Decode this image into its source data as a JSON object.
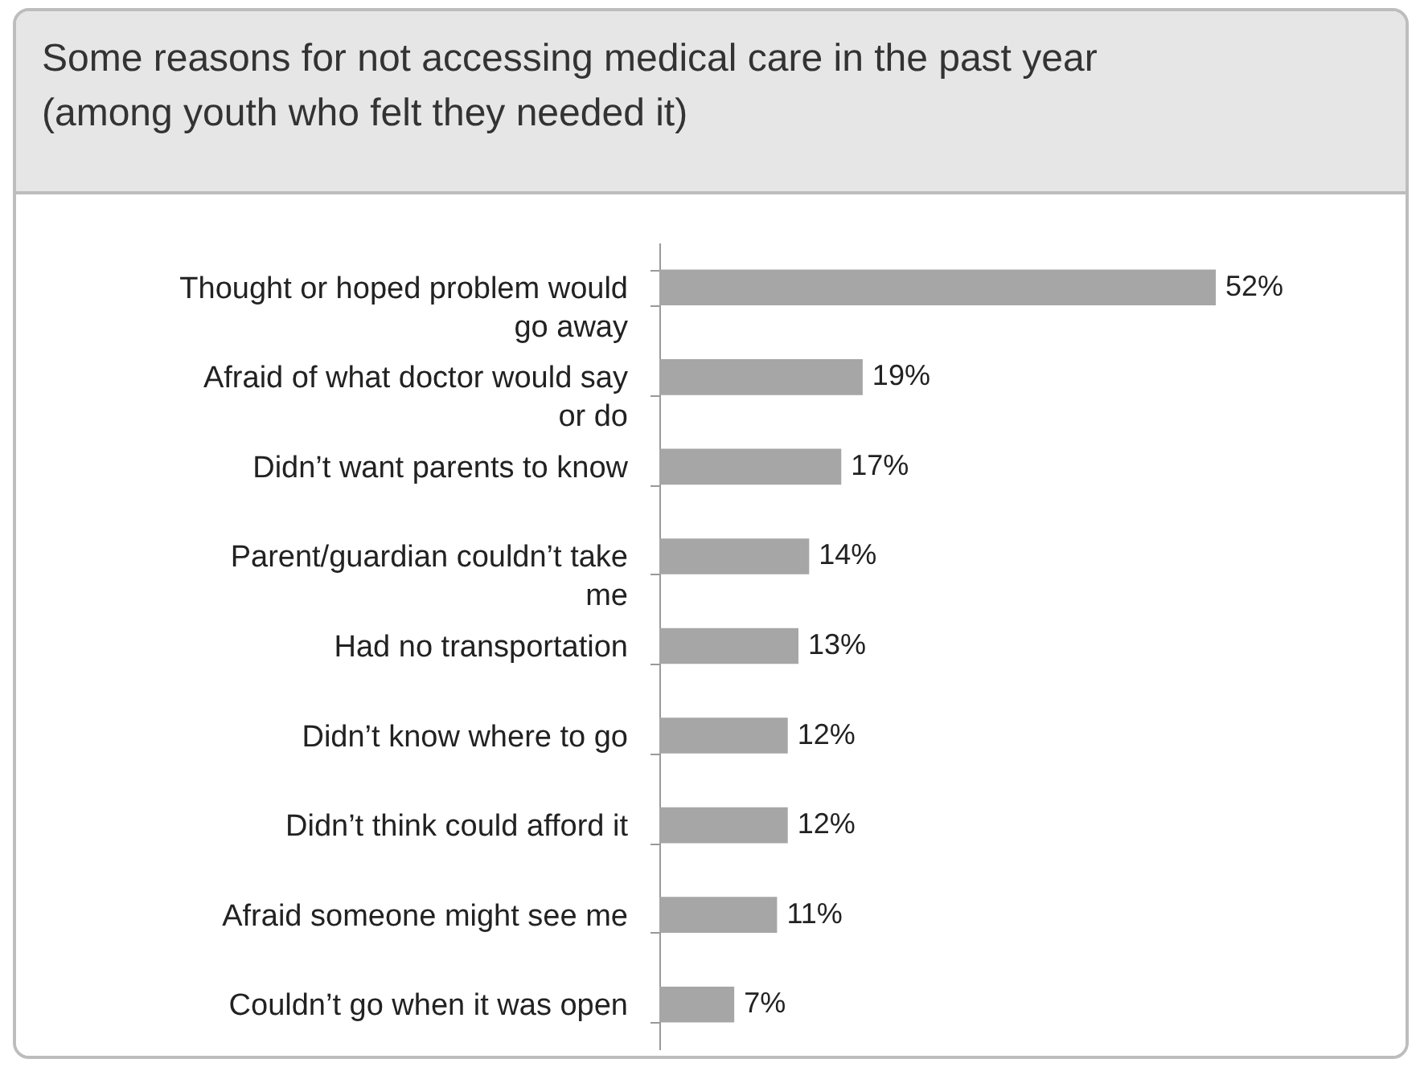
{
  "chart_data": {
    "type": "bar",
    "orientation": "horizontal",
    "title": "Some reasons for not accessing medical care in the past year",
    "subtitle": "(among youth who felt they needed it)",
    "categories": [
      "Thought or hoped problem would go away",
      "Afraid of what doctor would say or do",
      "Didn’t want parents to know",
      "Parent/guardian couldn’t take me",
      "Had no transportation",
      "Didn’t know where to go",
      "Didn’t think could afford it",
      "Afraid someone might see me",
      "Couldn’t go when it was open"
    ],
    "values": [
      52,
      19,
      17,
      14,
      13,
      12,
      12,
      11,
      7
    ],
    "value_labels": [
      "52%",
      "19%",
      "17%",
      "14%",
      "13%",
      "12%",
      "12%",
      "11%",
      "7%"
    ],
    "color": "#a6a6a6"
  }
}
